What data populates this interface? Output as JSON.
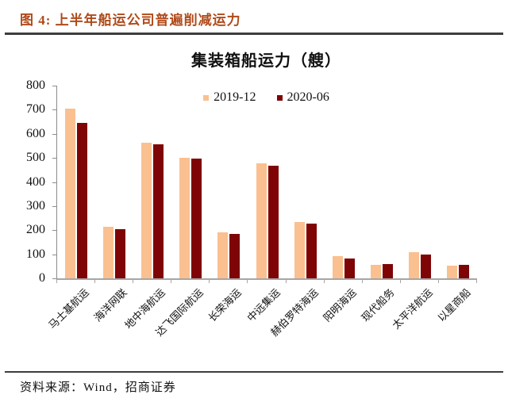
{
  "figure": {
    "caption": "图 4: 上半年船运公司普遍削减运力",
    "source": "资料来源：Wind，招商证券"
  },
  "colors": {
    "caption_accent": "#B04A1A",
    "series_2019_12": "#FAC090",
    "series_2020_06": "#7E0405",
    "axis": "#8c8c8c",
    "rule": "#3d3d3d"
  },
  "chart_data": {
    "type": "bar",
    "title": "集装箱船运力（艘）",
    "categories": [
      "马士基航运",
      "海洋网联",
      "地中海航运",
      "达飞国际航运",
      "长荣海运",
      "中远集运",
      "赫伯罗特海运",
      "阳明海运",
      "现代船务",
      "太平洋航运",
      "以星商船"
    ],
    "series": [
      {
        "name": "2019-12",
        "color": "#FAC090",
        "values": [
          705,
          215,
          562,
          500,
          192,
          476,
          234,
          92,
          57,
          108,
          52
        ]
      },
      {
        "name": "2020-06",
        "color": "#7E0405",
        "values": [
          645,
          205,
          555,
          498,
          184,
          469,
          227,
          84,
          60,
          99,
          56
        ]
      }
    ],
    "xlabel": "",
    "ylabel": "",
    "ylim": [
      0,
      800
    ],
    "y_ticks": [
      0,
      100,
      200,
      300,
      400,
      500,
      600,
      700,
      800
    ],
    "grid": false,
    "legend_position": "top-center"
  }
}
